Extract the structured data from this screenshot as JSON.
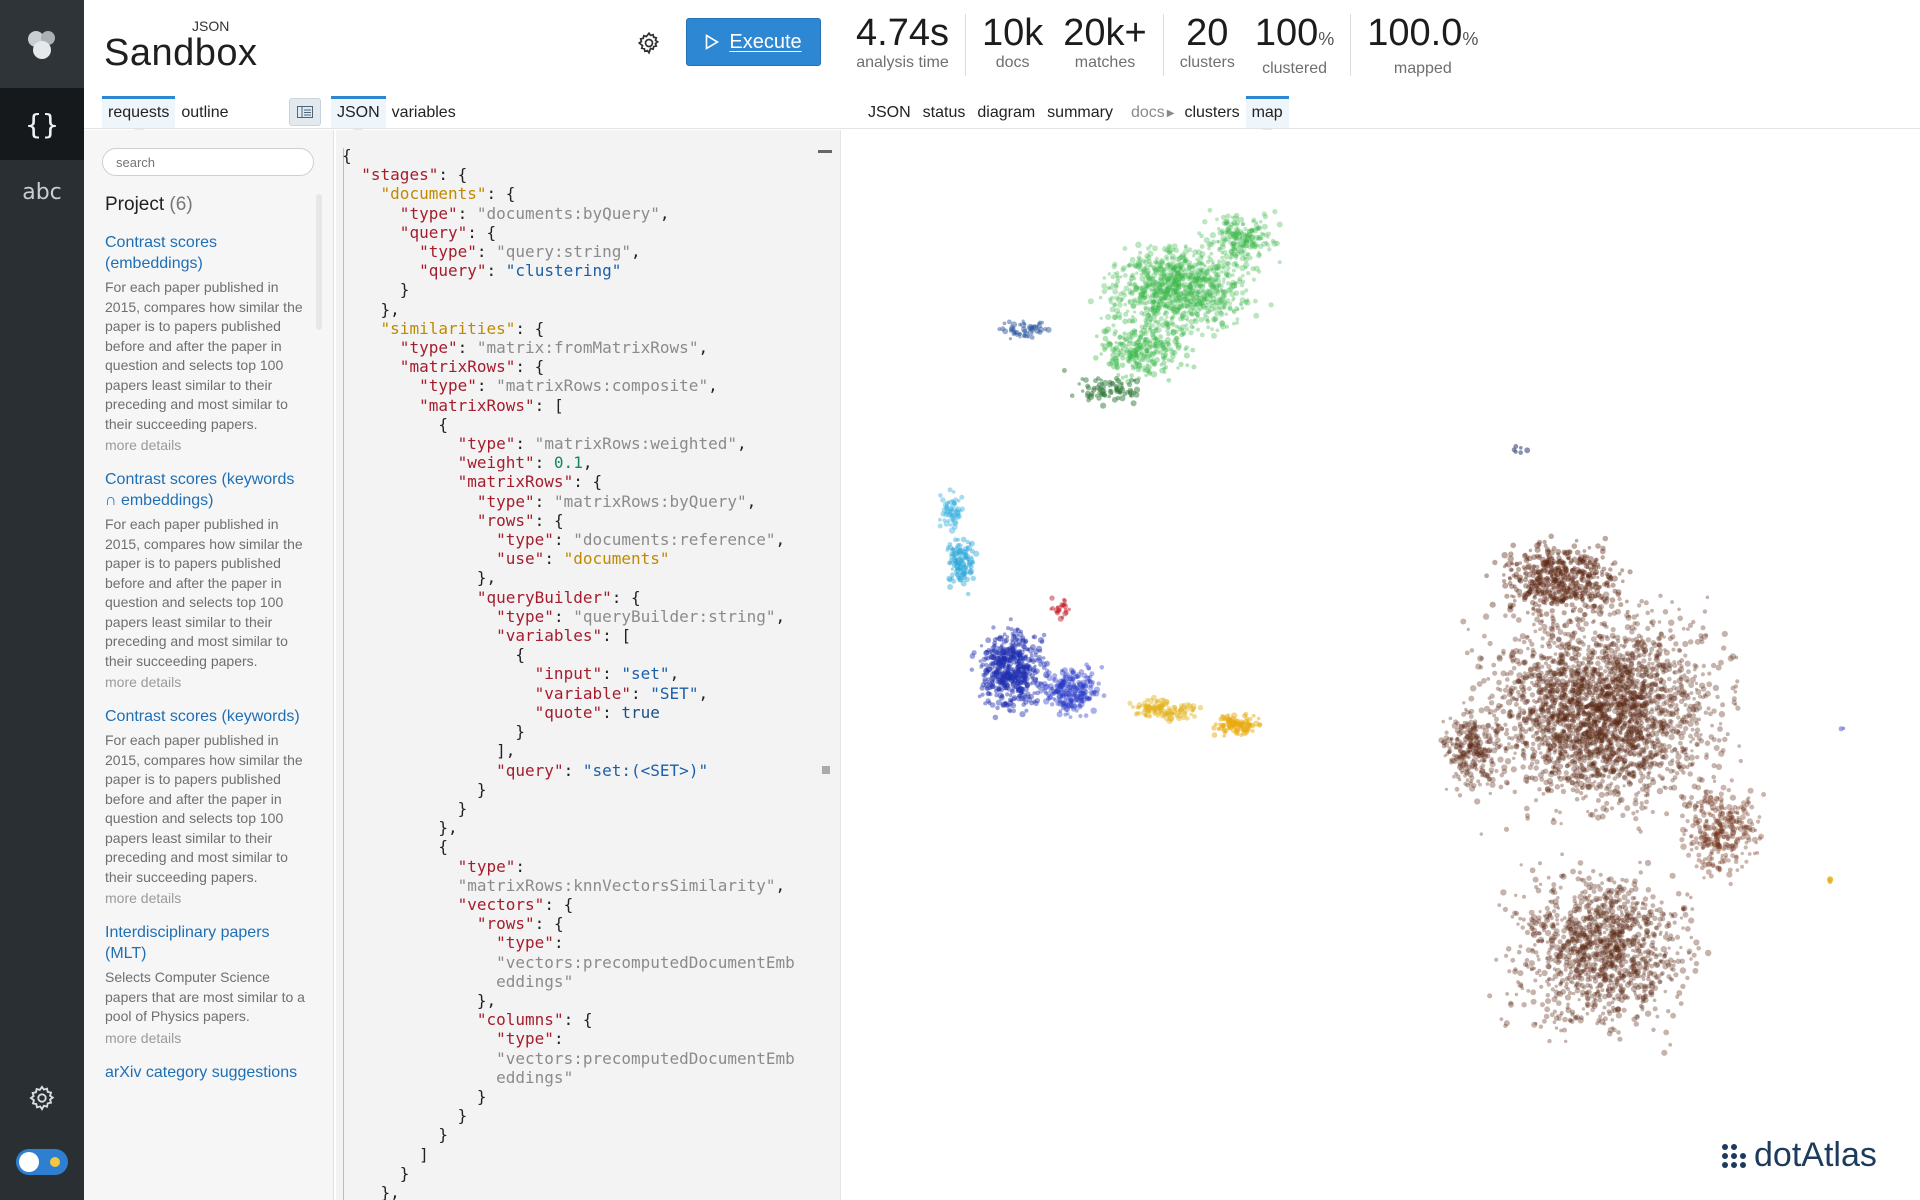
{
  "sidebar": {
    "json_icon_label": "{}",
    "abc_icon_label": "abc"
  },
  "brand": {
    "superscript": "JSON",
    "name": "Sandbox"
  },
  "toolbar": {
    "execute_label": "Execute"
  },
  "stats": [
    {
      "value": "4.74",
      "unit": "s",
      "label": "analysis time"
    },
    {
      "value": "10k",
      "unit": "",
      "label": "docs"
    },
    {
      "value": "20k+",
      "unit": "",
      "label": "matches"
    },
    {
      "value": "20",
      "unit": "",
      "label": "clusters"
    },
    {
      "value": "100",
      "unit": "%",
      "label": "clustered"
    },
    {
      "value": "100.0",
      "unit": "%",
      "label": "mapped"
    }
  ],
  "left_tabs": [
    "requests",
    "outline"
  ],
  "editor_tabs": [
    "JSON",
    "variables"
  ],
  "result_tabs": {
    "json": "JSON",
    "status": "status",
    "diagram": "diagram",
    "summary": "summary",
    "docs": "docs",
    "clusters": "clusters",
    "map": "map"
  },
  "search": {
    "placeholder": "search"
  },
  "project": {
    "title": "Project",
    "count": "(6)"
  },
  "requests": [
    {
      "title": "Contrast scores (embeddings)",
      "desc": "For each paper published in 2015, compares how similar the paper is to papers published before and after the paper in question and selects top 100 papers least similar to their preceding and most similar to their succeeding papers.",
      "more": "more details"
    },
    {
      "title": "Contrast scores (keywords ∩ embeddings)",
      "desc": "For each paper published in 2015, compares how similar the paper is to papers published before and after the paper in question and selects top 100 papers least similar to their preceding and most similar to their succeeding papers.",
      "more": "more details"
    },
    {
      "title": "Contrast scores (keywords)",
      "desc": "For each paper published in 2015, compares how similar the paper is to papers published before and after the paper in question and selects top 100 papers least similar to their preceding and most similar to their succeeding papers.",
      "more": "more details"
    },
    {
      "title": "Interdisciplinary papers (MLT)",
      "desc": "Selects Computer Science papers that are most similar to a pool of Physics papers.",
      "more": "more details"
    },
    {
      "title": "arXiv category suggestions",
      "desc": "",
      "more": ""
    }
  ],
  "code": {
    "stages": "stages",
    "documents": "documents",
    "documents_type": "documents:byQuery",
    "query": "query",
    "query_type": "query:string",
    "query_value": "clustering",
    "similarities": "similarities",
    "sim_type": "matrix:fromMatrixRows",
    "matrixRows": "matrixRows",
    "mr_type": "matrixRows:composite",
    "weighted_type": "matrixRows:weighted",
    "weight": "0.1",
    "byquery_type": "matrixRows:byQuery",
    "rows": "rows",
    "reference_type": "documents:reference",
    "use": "use",
    "use_value": "documents",
    "queryBuilder": "queryBuilder",
    "qb_type": "queryBuilder:string",
    "variables": "variables",
    "input": "input",
    "input_value": "set",
    "variable": "variable",
    "variable_value": "SET",
    "quote": "quote",
    "quote_value": "true",
    "qb_query_value": "set:(<SET>)",
    "knn_type": "matrixRows:knnVectorsSimilarity",
    "vectors": "vectors",
    "emb_type_1": "vectors:precomputedDocumentEmb",
    "emb_type_2": "eddings",
    "columns": "columns",
    "type": "type"
  },
  "map": {
    "logo_text": "dotAtlas",
    "cluster_colors": {
      "green": "#3cb84a",
      "blue": "#1f2fb0",
      "cyan": "#2aa6d8",
      "yellow": "#e3b21a",
      "brown": "#5a2410",
      "red": "#c4222c"
    }
  },
  "colors": {
    "accent": "#2d87d3",
    "rail": "#2a2f33"
  }
}
